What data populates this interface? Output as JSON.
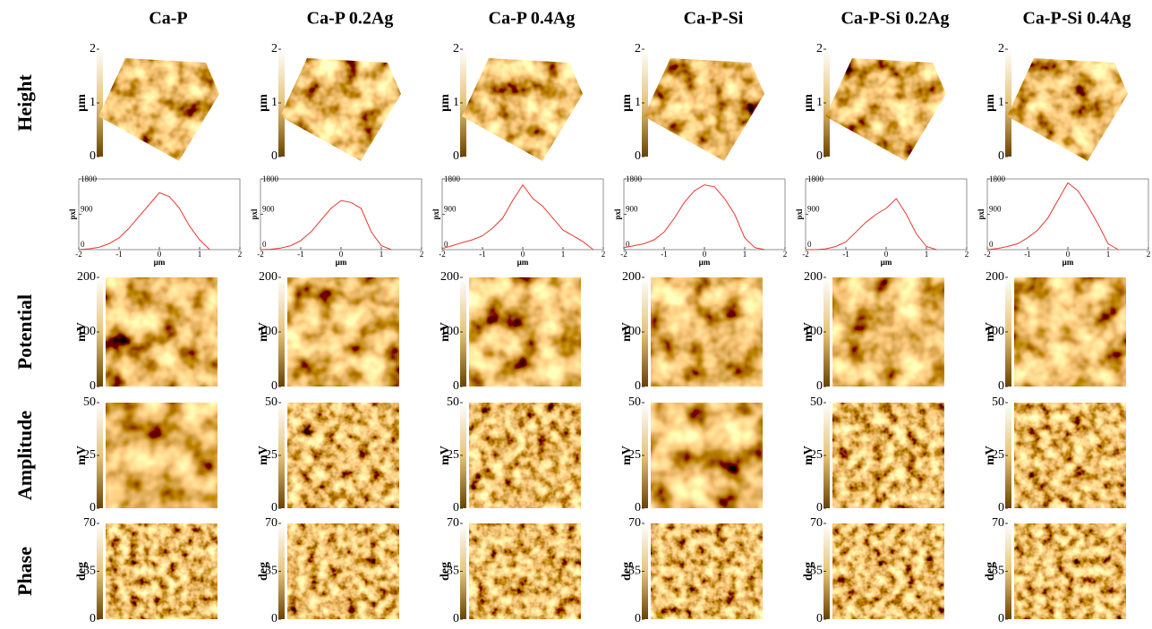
{
  "columns": [
    "Ca-P",
    "Ca-P 0.2Ag",
    "Ca-P 0.4Ag",
    "Ca-P-Si",
    "Ca-P-Si 0.2Ag",
    "Ca-P-Si 0.4Ag"
  ],
  "rows": [
    "Height",
    "Potential",
    "Amplitude",
    "Phase"
  ],
  "colorbars": [
    {
      "unit": "µm",
      "ticks": [
        0,
        1,
        2
      ]
    },
    {
      "unit": "mV",
      "ticks": [
        0,
        100,
        200
      ]
    },
    {
      "unit": "mV",
      "ticks": [
        0,
        25,
        50
      ]
    },
    {
      "unit": "deg",
      "ticks": [
        0,
        35,
        70
      ]
    }
  ],
  "histograms": {
    "type": "line",
    "xlabel": "µm",
    "ylabel": "pxl",
    "color": "#e8372f",
    "xlim": [
      -2,
      2
    ],
    "ylim": [
      0,
      1800
    ],
    "xticks": [
      -2,
      -1,
      0,
      1,
      2
    ],
    "yticks": [
      0,
      900,
      1800
    ],
    "x": [
      -2,
      -1.75,
      -1.5,
      -1.25,
      -1,
      -0.75,
      -0.5,
      -0.25,
      0,
      0.25,
      0.5,
      0.75,
      1,
      1.25,
      1.5,
      1.75,
      2
    ],
    "series": [
      {
        "values": [
          0,
          20,
          60,
          150,
          300,
          550,
          850,
          1150,
          1450,
          1350,
          1050,
          600,
          250,
          0,
          null,
          null,
          null
        ]
      },
      {
        "values": [
          0,
          10,
          40,
          100,
          230,
          450,
          750,
          1050,
          1250,
          1200,
          1050,
          450,
          100,
          0,
          null,
          null,
          null
        ]
      },
      {
        "values": [
          30,
          100,
          180,
          250,
          350,
          550,
          800,
          1250,
          1650,
          1300,
          1100,
          800,
          500,
          350,
          200,
          0,
          null
        ]
      },
      {
        "values": [
          50,
          100,
          150,
          250,
          450,
          800,
          1200,
          1500,
          1650,
          1600,
          1300,
          900,
          300,
          50,
          0,
          null,
          null
        ]
      },
      {
        "values": [
          0,
          0,
          20,
          80,
          200,
          450,
          700,
          900,
          1050,
          1300,
          900,
          400,
          80,
          0,
          null,
          null,
          null
        ]
      },
      {
        "values": [
          0,
          30,
          80,
          150,
          300,
          500,
          800,
          1250,
          1700,
          1500,
          1100,
          650,
          150,
          0,
          null,
          null,
          null
        ]
      }
    ]
  }
}
